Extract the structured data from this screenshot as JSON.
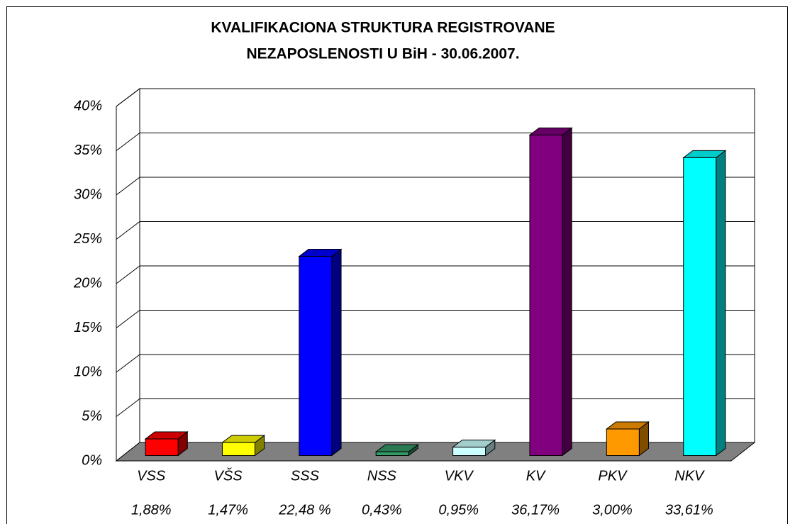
{
  "chart_data": {
    "type": "bar3d",
    "title": [
      "KVALIFIKACIONA STRUKTURA REGISTROVANE",
      "NEZAPOSLENOSTI  U BiH - 30.06.2007."
    ],
    "categories": [
      "VSS",
      "VŠS",
      "SSS",
      "NSS",
      "VKV",
      "KV",
      "PKV",
      "NKV"
    ],
    "values": [
      1.88,
      1.47,
      22.48,
      0.43,
      0.95,
      36.17,
      3.0,
      33.61
    ],
    "value_labels": [
      "1,88%",
      "1,47%",
      "22,48 %",
      "0,43%",
      "0,95%",
      "36,17%",
      "3,00%",
      "33,61%"
    ],
    "colors": [
      "#ff0000",
      "#ffff00",
      "#0000ff",
      "#339966",
      "#ccffff",
      "#800080",
      "#ff9900",
      "#00ffff"
    ],
    "ylim": [
      0,
      40
    ],
    "yticks": [
      {
        "value": 0,
        "label": "0%"
      },
      {
        "value": 5,
        "label": "5%"
      },
      {
        "value": 10,
        "label": "10%"
      },
      {
        "value": 15,
        "label": "15%"
      },
      {
        "value": 20,
        "label": "20%"
      },
      {
        "value": 25,
        "label": "25%"
      },
      {
        "value": 30,
        "label": "30%"
      },
      {
        "value": 35,
        "label": "35%"
      },
      {
        "value": 40,
        "label": "40%"
      }
    ],
    "grid": true
  }
}
